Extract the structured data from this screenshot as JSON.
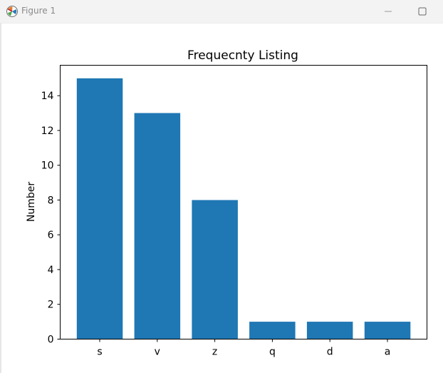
{
  "window": {
    "title": "Figure 1",
    "icon": "matplotlib-figure-icon"
  },
  "chart_data": {
    "type": "bar",
    "title": "Frequecnty Listing",
    "xlabel": "",
    "ylabel": "Number",
    "categories": [
      "s",
      "v",
      "z",
      "q",
      "d",
      "a"
    ],
    "values": [
      15,
      13,
      8,
      1,
      1,
      1
    ],
    "ylim": [
      0,
      15.75
    ],
    "yticks": [
      0,
      2,
      4,
      6,
      8,
      10,
      12,
      14
    ],
    "bar_color": "#1f77b4",
    "grid": false,
    "legend": "none"
  }
}
